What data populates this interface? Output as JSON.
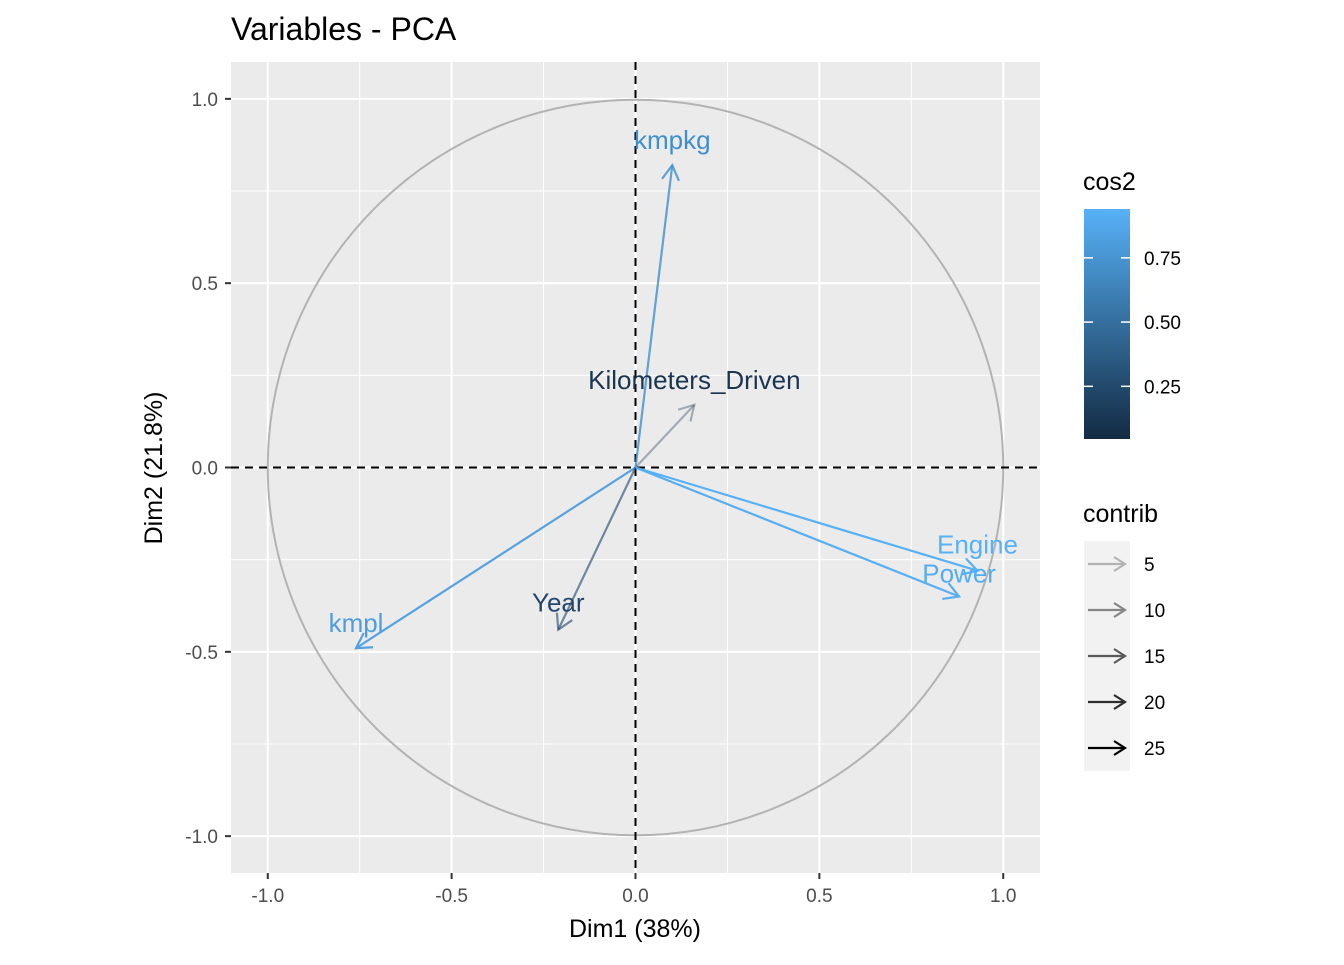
{
  "chart_data": {
    "type": "scatter",
    "subtype": "pca-variable-correlation-circle",
    "title": "Variables - PCA",
    "xlabel": "Dim1 (38%)",
    "ylabel": "Dim2 (21.8%)",
    "xlim": [
      -1.1,
      1.1
    ],
    "ylim": [
      -1.1,
      1.1
    ],
    "x_ticks": [
      -1.0,
      -0.5,
      0.0,
      0.5,
      1.0
    ],
    "y_ticks": [
      -1.0,
      -0.5,
      0.0,
      0.5,
      1.0
    ],
    "x_tick_labels": [
      "-1.0",
      "-0.5",
      "0.0",
      "0.5",
      "1.0"
    ],
    "y_tick_labels": [
      "-1.0",
      "-0.5",
      "0.0",
      "0.5",
      "1.0"
    ],
    "grid": true,
    "unit_circle": true,
    "panel_background": "#ebebeb",
    "variables": [
      {
        "name": "kmpkg",
        "x": 0.1,
        "y": 0.82,
        "cos2": 0.71,
        "contrib": 17.4,
        "color": "#3f8fcd"
      },
      {
        "name": "Kilometers_Driven",
        "x": 0.16,
        "y": 0.17,
        "cos2": 0.05,
        "contrib": 1.4,
        "color": "#1b3550"
      },
      {
        "name": "Engine",
        "x": 0.93,
        "y": -0.28,
        "cos2": 0.94,
        "contrib": 24.3,
        "color": "#56b1f7"
      },
      {
        "name": "Power",
        "x": 0.88,
        "y": -0.35,
        "cos2": 0.9,
        "contrib": 23.8,
        "color": "#54adf2"
      },
      {
        "name": "kmpl",
        "x": -0.76,
        "y": -0.49,
        "cos2": 0.82,
        "contrib": 22.4,
        "color": "#4d9ee0"
      },
      {
        "name": "Year",
        "x": -0.21,
        "y": -0.44,
        "cos2": 0.24,
        "contrib": 10.7,
        "color": "#24486d"
      }
    ],
    "legend": {
      "placement": "right",
      "cos2": {
        "title": "cos2",
        "breaks": [
          0.25,
          0.5,
          0.75
        ],
        "labels": [
          "0.25",
          "0.50",
          "0.75"
        ],
        "range": [
          0.045,
          0.94
        ],
        "low_color": "#132b43",
        "high_color": "#56b1f7"
      },
      "contrib": {
        "title": "contrib",
        "breaks": [
          5,
          10,
          15,
          20,
          25
        ],
        "labels": [
          "5",
          "10",
          "15",
          "20",
          "25"
        ],
        "low_color": "#b3b3b3",
        "high_color": "#000000"
      }
    }
  }
}
